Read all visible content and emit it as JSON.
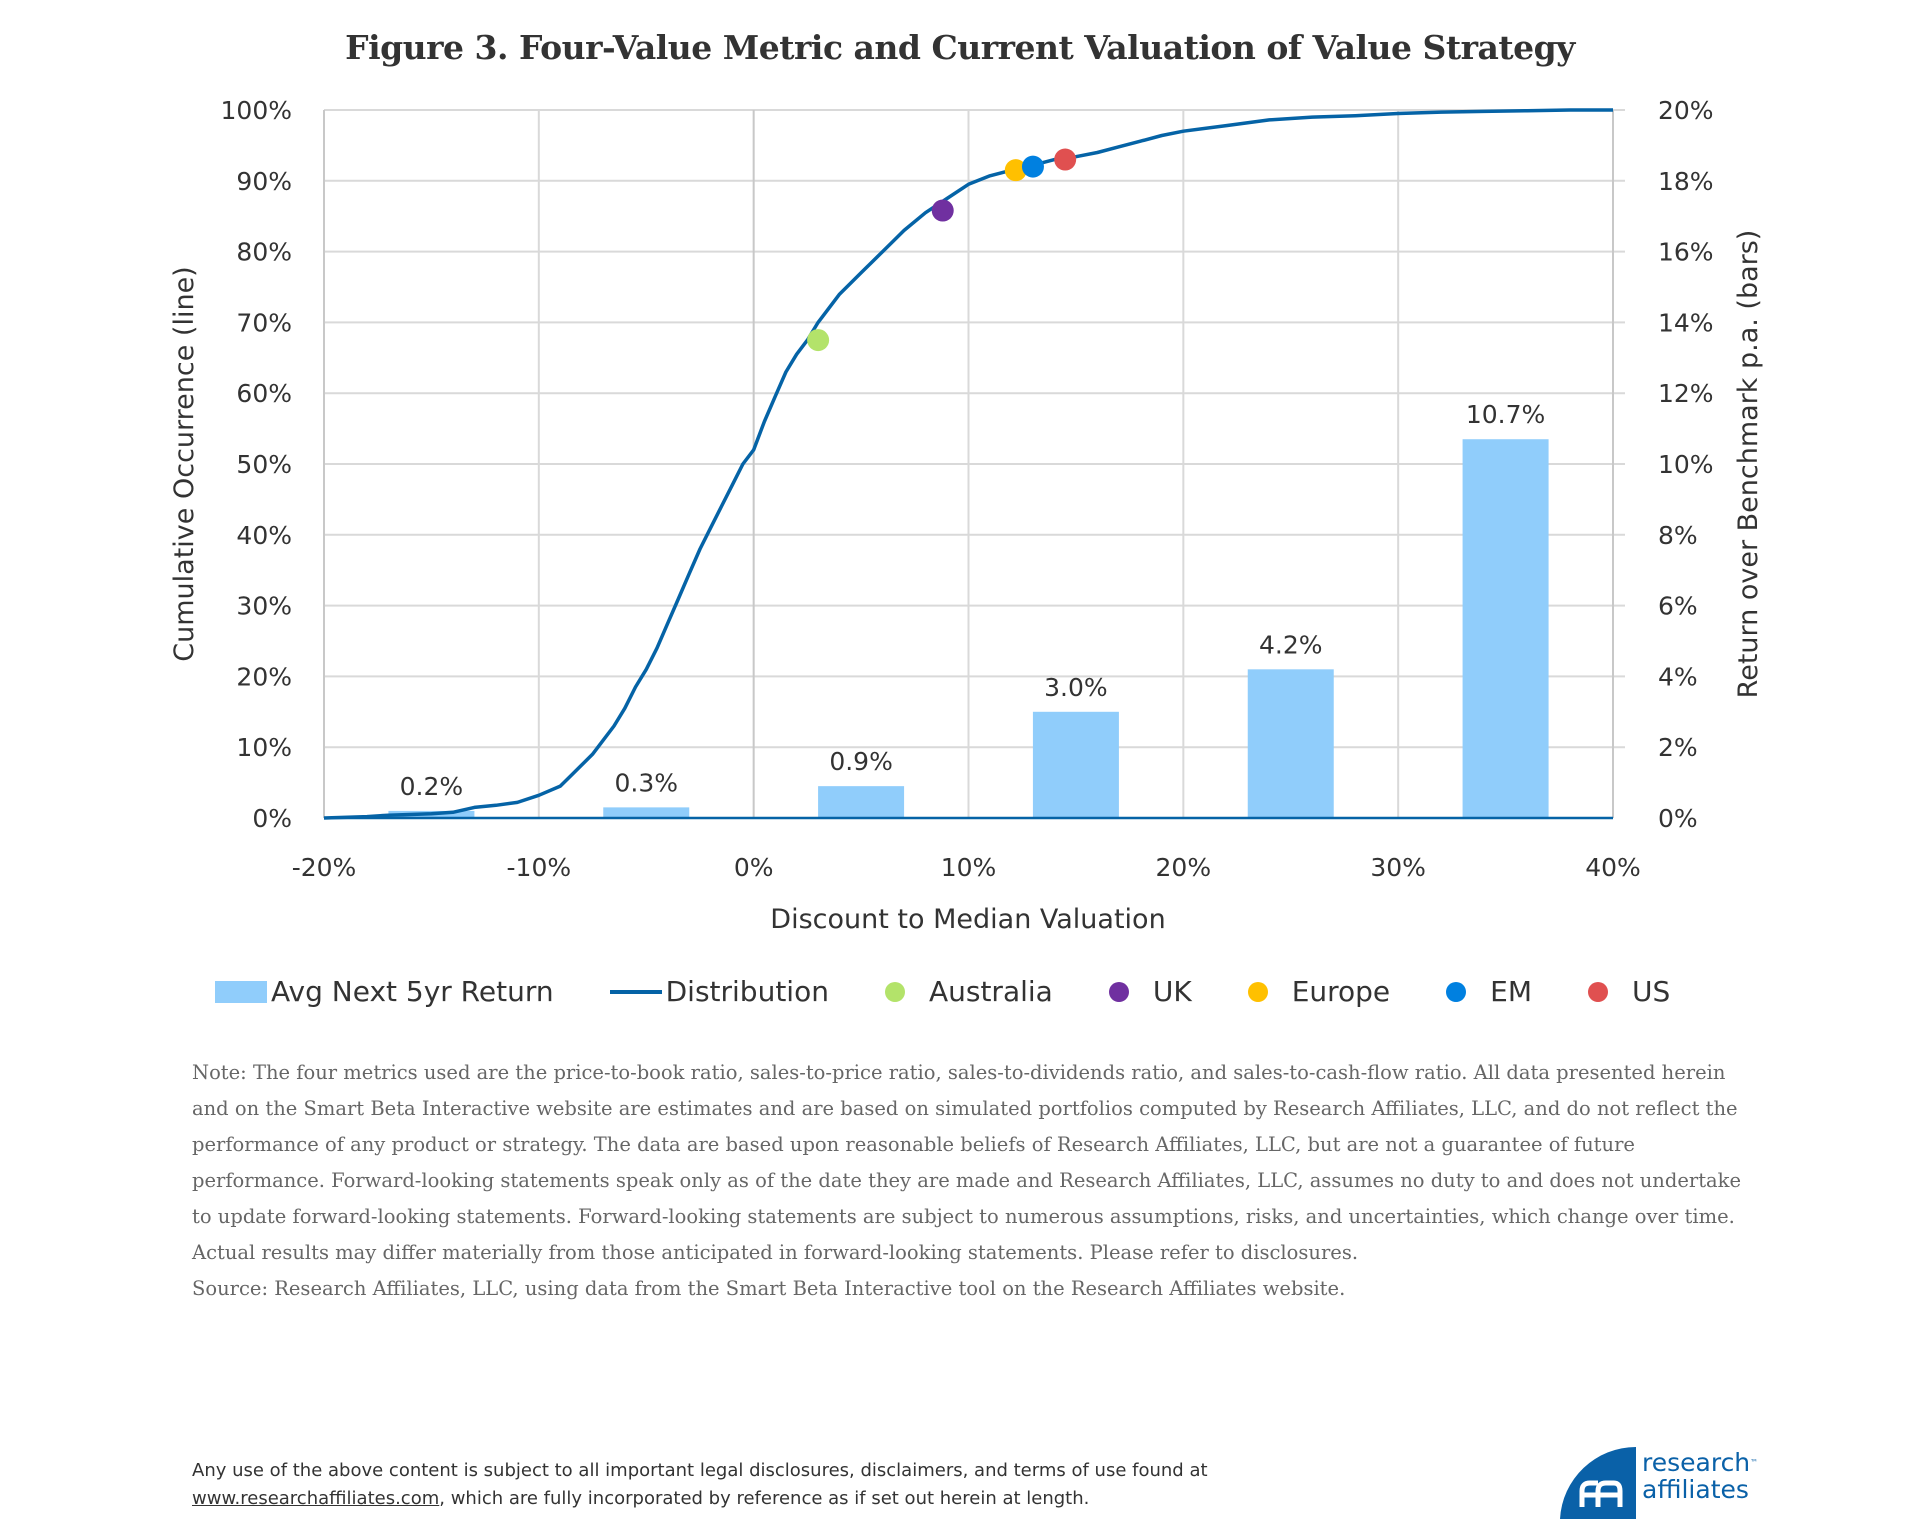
{
  "title": "Figure 3. Four-Value Metric and Current Valuation of Value Strategy",
  "chart_data": {
    "type": "combo",
    "title": "Figure 3. Four-Value Metric and Current Valuation of Value Strategy",
    "xlabel": "Discount  to Median Valuation",
    "ylabel_left": "Cumulative Occurrence (line)",
    "ylabel_right": "Return over Benchmark p.a. (bars)",
    "x_range": [
      -20,
      40
    ],
    "x_ticks": [
      "-20%",
      "-10%",
      "0%",
      "10%",
      "20%",
      "30%",
      "40%"
    ],
    "y_left_range": [
      0,
      100
    ],
    "y_left_ticks": [
      "0%",
      "10%",
      "20%",
      "30%",
      "40%",
      "50%",
      "60%",
      "70%",
      "80%",
      "90%",
      "100%"
    ],
    "y_right_range": [
      0,
      20
    ],
    "y_right_ticks": [
      "0%",
      "2%",
      "4%",
      "6%",
      "8%",
      "10%",
      "12%",
      "14%",
      "16%",
      "18%",
      "20%"
    ],
    "grid": true,
    "legend_position": "bottom",
    "bars": {
      "name": "Avg Next 5yr Return",
      "color": "#90cdfb",
      "x_centers": [
        -15,
        -5,
        5,
        15,
        25,
        35
      ],
      "values": [
        0.2,
        0.3,
        0.9,
        3.0,
        4.2,
        10.7
      ],
      "labels": [
        "0.2%",
        "0.3%",
        "0.9%",
        "3.0%",
        "4.2%",
        "10.7%"
      ]
    },
    "line": {
      "name": "Distribution",
      "color": "#0563a6",
      "x": [
        -20,
        -18,
        -17,
        -16,
        -15,
        -14,
        -13,
        -12,
        -11,
        -10,
        -9,
        -8.5,
        -8,
        -7.5,
        -7,
        -6.5,
        -6,
        -5.5,
        -5,
        -4.5,
        -4,
        -3.5,
        -3,
        -2.5,
        -2,
        -1.5,
        -1,
        -0.5,
        0,
        0.5,
        1,
        1.5,
        2,
        2.5,
        3,
        3.5,
        4,
        4.5,
        5,
        5.5,
        6,
        7,
        8,
        9,
        10,
        11,
        12,
        13,
        14,
        15,
        16,
        17,
        18,
        19,
        20,
        22,
        24,
        26,
        28,
        30,
        32,
        34,
        36,
        38,
        40
      ],
      "y": [
        0,
        0.2,
        0.4,
        0.5,
        0.6,
        0.8,
        1.5,
        1.8,
        2.2,
        3.2,
        4.5,
        6,
        7.5,
        9,
        11,
        13,
        15.5,
        18.5,
        21,
        24,
        27.5,
        31,
        34.5,
        38,
        41,
        44,
        47,
        50,
        52,
        56,
        59.5,
        63,
        65.5,
        67.5,
        70,
        72,
        74,
        75.5,
        77,
        78.5,
        80,
        83,
        85.5,
        87.5,
        89.5,
        90.7,
        91.5,
        92.2,
        93,
        93.4,
        94,
        94.8,
        95.6,
        96.4,
        97,
        97.8,
        98.6,
        99,
        99.2,
        99.5,
        99.7,
        99.8,
        99.9,
        100,
        100
      ]
    },
    "points": [
      {
        "name": "Australia",
        "x": 3.0,
        "y": 67.5,
        "color": "#b3e36a"
      },
      {
        "name": "UK",
        "x": 8.8,
        "y": 85.8,
        "color": "#7030a0"
      },
      {
        "name": "Europe",
        "x": 12.2,
        "y": 91.5,
        "color": "#ffc000"
      },
      {
        "name": "EM",
        "x": 13.0,
        "y": 92.0,
        "color": "#0080e0"
      },
      {
        "name": "US",
        "x": 14.5,
        "y": 93.0,
        "color": "#e05050"
      }
    ]
  },
  "legend": [
    {
      "label": "Avg Next 5yr Return",
      "kind": "bar",
      "color": "#90cdfb"
    },
    {
      "label": "Distribution",
      "kind": "line",
      "color": "#0563a6"
    },
    {
      "label": "Australia",
      "kind": "dot",
      "color": "#b3e36a"
    },
    {
      "label": "UK",
      "kind": "dot",
      "color": "#7030a0"
    },
    {
      "label": "Europe",
      "kind": "dot",
      "color": "#ffc000"
    },
    {
      "label": "EM",
      "kind": "dot",
      "color": "#0080e0"
    },
    {
      "label": "US",
      "kind": "dot",
      "color": "#e05050"
    }
  ],
  "note": {
    "text": "Note: The four metrics used are the price-to-book ratio, sales-to-price ratio, sales-to-dividends ratio, and sales-to-cash-flow ratio. All data presented herein and on the Smart Beta Interactive website are estimates and are based on simulated portfolios computed by Research Affiliates, LLC, and do not reflect the performance of any product or strategy. The data are based upon reasonable beliefs of Research Affiliates, LLC, but are not a guarantee of future performance. Forward-looking statements speak only as of the date they are made and Research Affiliates, LLC, assumes no duty to and does not undertake to update forward-looking statements. Forward-looking statements are subject to numerous assumptions, risks, and uncertainties, which change over time. Actual results may differ materially from those anticipated in forward-looking statements. Please refer to disclosures.",
    "source": "Source: Research Affiliates, LLC, using data from the Smart Beta Interactive tool on the Research Affiliates website."
  },
  "footer": {
    "line1": "Any use of the above content is subject to all important legal disclosures, disclaimers, and terms of use found at",
    "link": "www.researchaffiliates.com",
    "line2": ", which are fully incorporated by reference as if set out herein at length."
  },
  "logo": {
    "line1": "research",
    "tm": "™",
    "line2": "affiliates",
    "color": "#0a61a8"
  }
}
